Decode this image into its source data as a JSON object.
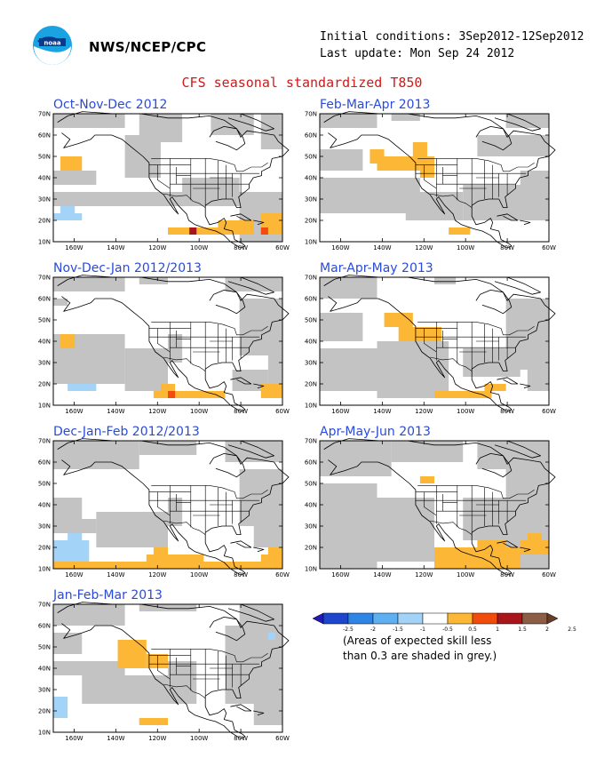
{
  "header": {
    "org": "NWS/NCEP/CPC",
    "initial": "Initial conditions: 3Sep2012-12Sep2012",
    "updated": "Last update: Mon Sep 24 2012",
    "logo_icon": "noaa-logo-icon"
  },
  "title": "CFS seasonal standardized T850",
  "axes": {
    "lat": [
      "70N",
      "60N",
      "50N",
      "40N",
      "30N",
      "20N",
      "10N"
    ],
    "lon": [
      "160W",
      "140W",
      "120W",
      "100W",
      "80W",
      "60W"
    ]
  },
  "panels": [
    {
      "title": "Oct-Nov-Dec 2012",
      "grey": [
        [
          0,
          0,
          10,
          2
        ],
        [
          10,
          3,
          5,
          6
        ],
        [
          12,
          0,
          6,
          4
        ],
        [
          22,
          0,
          6,
          3
        ],
        [
          29,
          0,
          3,
          5
        ],
        [
          0,
          8,
          6,
          2
        ],
        [
          0,
          11,
          32,
          2
        ],
        [
          18,
          9,
          8,
          4
        ],
        [
          26,
          13,
          6,
          5
        ]
      ],
      "cells": [
        [
          1,
          6,
          3,
          2,
          "orange"
        ],
        [
          1,
          13,
          2,
          1,
          "lightblue"
        ],
        [
          0,
          14,
          4,
          1,
          "lightblue"
        ],
        [
          16,
          16,
          12,
          1,
          "orange"
        ],
        [
          23,
          15,
          5,
          2,
          "orange"
        ],
        [
          29,
          14,
          3,
          3,
          "orange"
        ],
        [
          19,
          16,
          1,
          1,
          "darkred"
        ],
        [
          29,
          16,
          1,
          1,
          "red"
        ]
      ]
    },
    {
      "title": "Feb-Mar-Apr 2013",
      "grey": [
        [
          0,
          0,
          8,
          2
        ],
        [
          10,
          0,
          4,
          1
        ],
        [
          26,
          0,
          6,
          2
        ],
        [
          22,
          3,
          10,
          3
        ],
        [
          0,
          5,
          6,
          3
        ],
        [
          0,
          9,
          14,
          5
        ],
        [
          12,
          11,
          8,
          4
        ],
        [
          20,
          10,
          12,
          5
        ],
        [
          28,
          8,
          4,
          3
        ]
      ],
      "cells": [
        [
          7,
          5,
          2,
          2,
          "orange"
        ],
        [
          13,
          4,
          2,
          3,
          "orange"
        ],
        [
          8,
          6,
          6,
          2,
          "orange"
        ],
        [
          14,
          6,
          2,
          3,
          "orange"
        ],
        [
          18,
          16,
          3,
          1,
          "orange"
        ]
      ]
    },
    {
      "title": "Nov-Dec-Jan 2012/2013",
      "grey": [
        [
          0,
          0,
          10,
          2
        ],
        [
          12,
          0,
          4,
          1
        ],
        [
          24,
          0,
          8,
          2
        ],
        [
          0,
          3,
          2,
          1
        ],
        [
          0,
          8,
          10,
          7
        ],
        [
          10,
          10,
          6,
          6
        ],
        [
          16,
          8,
          2,
          4
        ],
        [
          26,
          3,
          6,
          8
        ],
        [
          30,
          11,
          2,
          4
        ],
        [
          25,
          13,
          5,
          3
        ]
      ],
      "cells": [
        [
          1,
          8,
          2,
          2,
          "orange"
        ],
        [
          2,
          15,
          4,
          1,
          "lightblue"
        ],
        [
          14,
          16,
          10,
          1,
          "orange"
        ],
        [
          15,
          15,
          2,
          1,
          "orange"
        ],
        [
          29,
          15,
          3,
          2,
          "orange"
        ],
        [
          16,
          16,
          1,
          1,
          "red"
        ]
      ]
    },
    {
      "title": "Mar-Apr-May 2013",
      "grey": [
        [
          0,
          0,
          8,
          3
        ],
        [
          16,
          0,
          3,
          1
        ],
        [
          0,
          5,
          6,
          4
        ],
        [
          0,
          10,
          8,
          6
        ],
        [
          8,
          9,
          10,
          8
        ],
        [
          20,
          10,
          8,
          4
        ],
        [
          26,
          3,
          6,
          10
        ],
        [
          29,
          13,
          3,
          3
        ]
      ],
      "cells": [
        [
          9,
          5,
          4,
          2,
          "orange"
        ],
        [
          11,
          7,
          6,
          2,
          "orange"
        ],
        [
          16,
          16,
          8,
          1,
          "orange"
        ],
        [
          23,
          15,
          3,
          1,
          "orange"
        ]
      ]
    },
    {
      "title": "Dec-Jan-Feb 2012/2013",
      "grey": [
        [
          0,
          0,
          12,
          4
        ],
        [
          12,
          0,
          8,
          2
        ],
        [
          24,
          0,
          8,
          3
        ],
        [
          0,
          8,
          4,
          3
        ],
        [
          0,
          11,
          6,
          2
        ],
        [
          6,
          10,
          10,
          5
        ],
        [
          16,
          8,
          2,
          4
        ],
        [
          26,
          4,
          6,
          8
        ],
        [
          28,
          12,
          4,
          3
        ]
      ],
      "cells": [
        [
          0,
          14,
          5,
          3,
          "lightblue"
        ],
        [
          2,
          13,
          2,
          1,
          "lightblue"
        ],
        [
          0,
          17,
          32,
          1,
          "orange"
        ],
        [
          13,
          16,
          8,
          1,
          "orange"
        ],
        [
          14,
          15,
          2,
          1,
          "orange"
        ],
        [
          29,
          16,
          3,
          1,
          "orange"
        ],
        [
          30,
          15,
          2,
          1,
          "orange"
        ]
      ]
    },
    {
      "title": "Apr-May-Jun 2013",
      "grey": [
        [
          0,
          0,
          10,
          5
        ],
        [
          10,
          0,
          10,
          3
        ],
        [
          22,
          0,
          10,
          4
        ],
        [
          0,
          6,
          8,
          12
        ],
        [
          8,
          8,
          8,
          9
        ],
        [
          20,
          8,
          12,
          6
        ],
        [
          26,
          4,
          6,
          4
        ],
        [
          24,
          14,
          8,
          4
        ]
      ],
      "cells": [
        [
          14,
          5,
          2,
          1,
          "orange"
        ],
        [
          16,
          15,
          12,
          3,
          "orange"
        ],
        [
          22,
          14,
          4,
          1,
          "orange"
        ],
        [
          28,
          14,
          4,
          2,
          "orange"
        ],
        [
          29,
          13,
          2,
          1,
          "orange"
        ]
      ]
    },
    {
      "title": "Jan-Feb-Mar 2013",
      "grey": [
        [
          0,
          0,
          10,
          3
        ],
        [
          12,
          0,
          8,
          1
        ],
        [
          26,
          0,
          6,
          3
        ],
        [
          0,
          4,
          4,
          3
        ],
        [
          24,
          3,
          8,
          11
        ],
        [
          0,
          8,
          10,
          2
        ],
        [
          4,
          10,
          12,
          4
        ],
        [
          16,
          8,
          4,
          6
        ],
        [
          28,
          12,
          4,
          5
        ]
      ],
      "cells": [
        [
          9,
          5,
          4,
          4,
          "orange"
        ],
        [
          13,
          7,
          3,
          2,
          "orange"
        ],
        [
          0,
          13,
          2,
          3,
          "lightblue"
        ],
        [
          12,
          16,
          4,
          1,
          "orange"
        ],
        [
          30,
          4,
          1,
          1,
          "lightblue"
        ]
      ]
    }
  ],
  "legend": {
    "ticks": [
      "-2.5",
      "-2",
      "-1.5",
      "-1",
      "-0.5",
      "0.5",
      "1",
      "1.5",
      "2",
      "2.5"
    ],
    "colors": [
      "#2418b8",
      "#1e46cc",
      "#2f85e6",
      "#5fb0f2",
      "#a3d4f8",
      "#ffffff",
      "#fbb735",
      "#f24c0c",
      "#a8151b",
      "#8b5e45",
      "#6a3c2a"
    ],
    "note_line1": "(Areas of expected skill less",
    "note_line2": "than 0.3 are shaded in grey.)"
  },
  "palette": {
    "grey": "#c3c3c3",
    "orange": "#fbb735",
    "lightblue": "#a3d4f8",
    "red": "#f24c0c",
    "darkred": "#a8151b",
    "title_red": "#d11919",
    "panel_title_blue": "#2a4bd7"
  }
}
